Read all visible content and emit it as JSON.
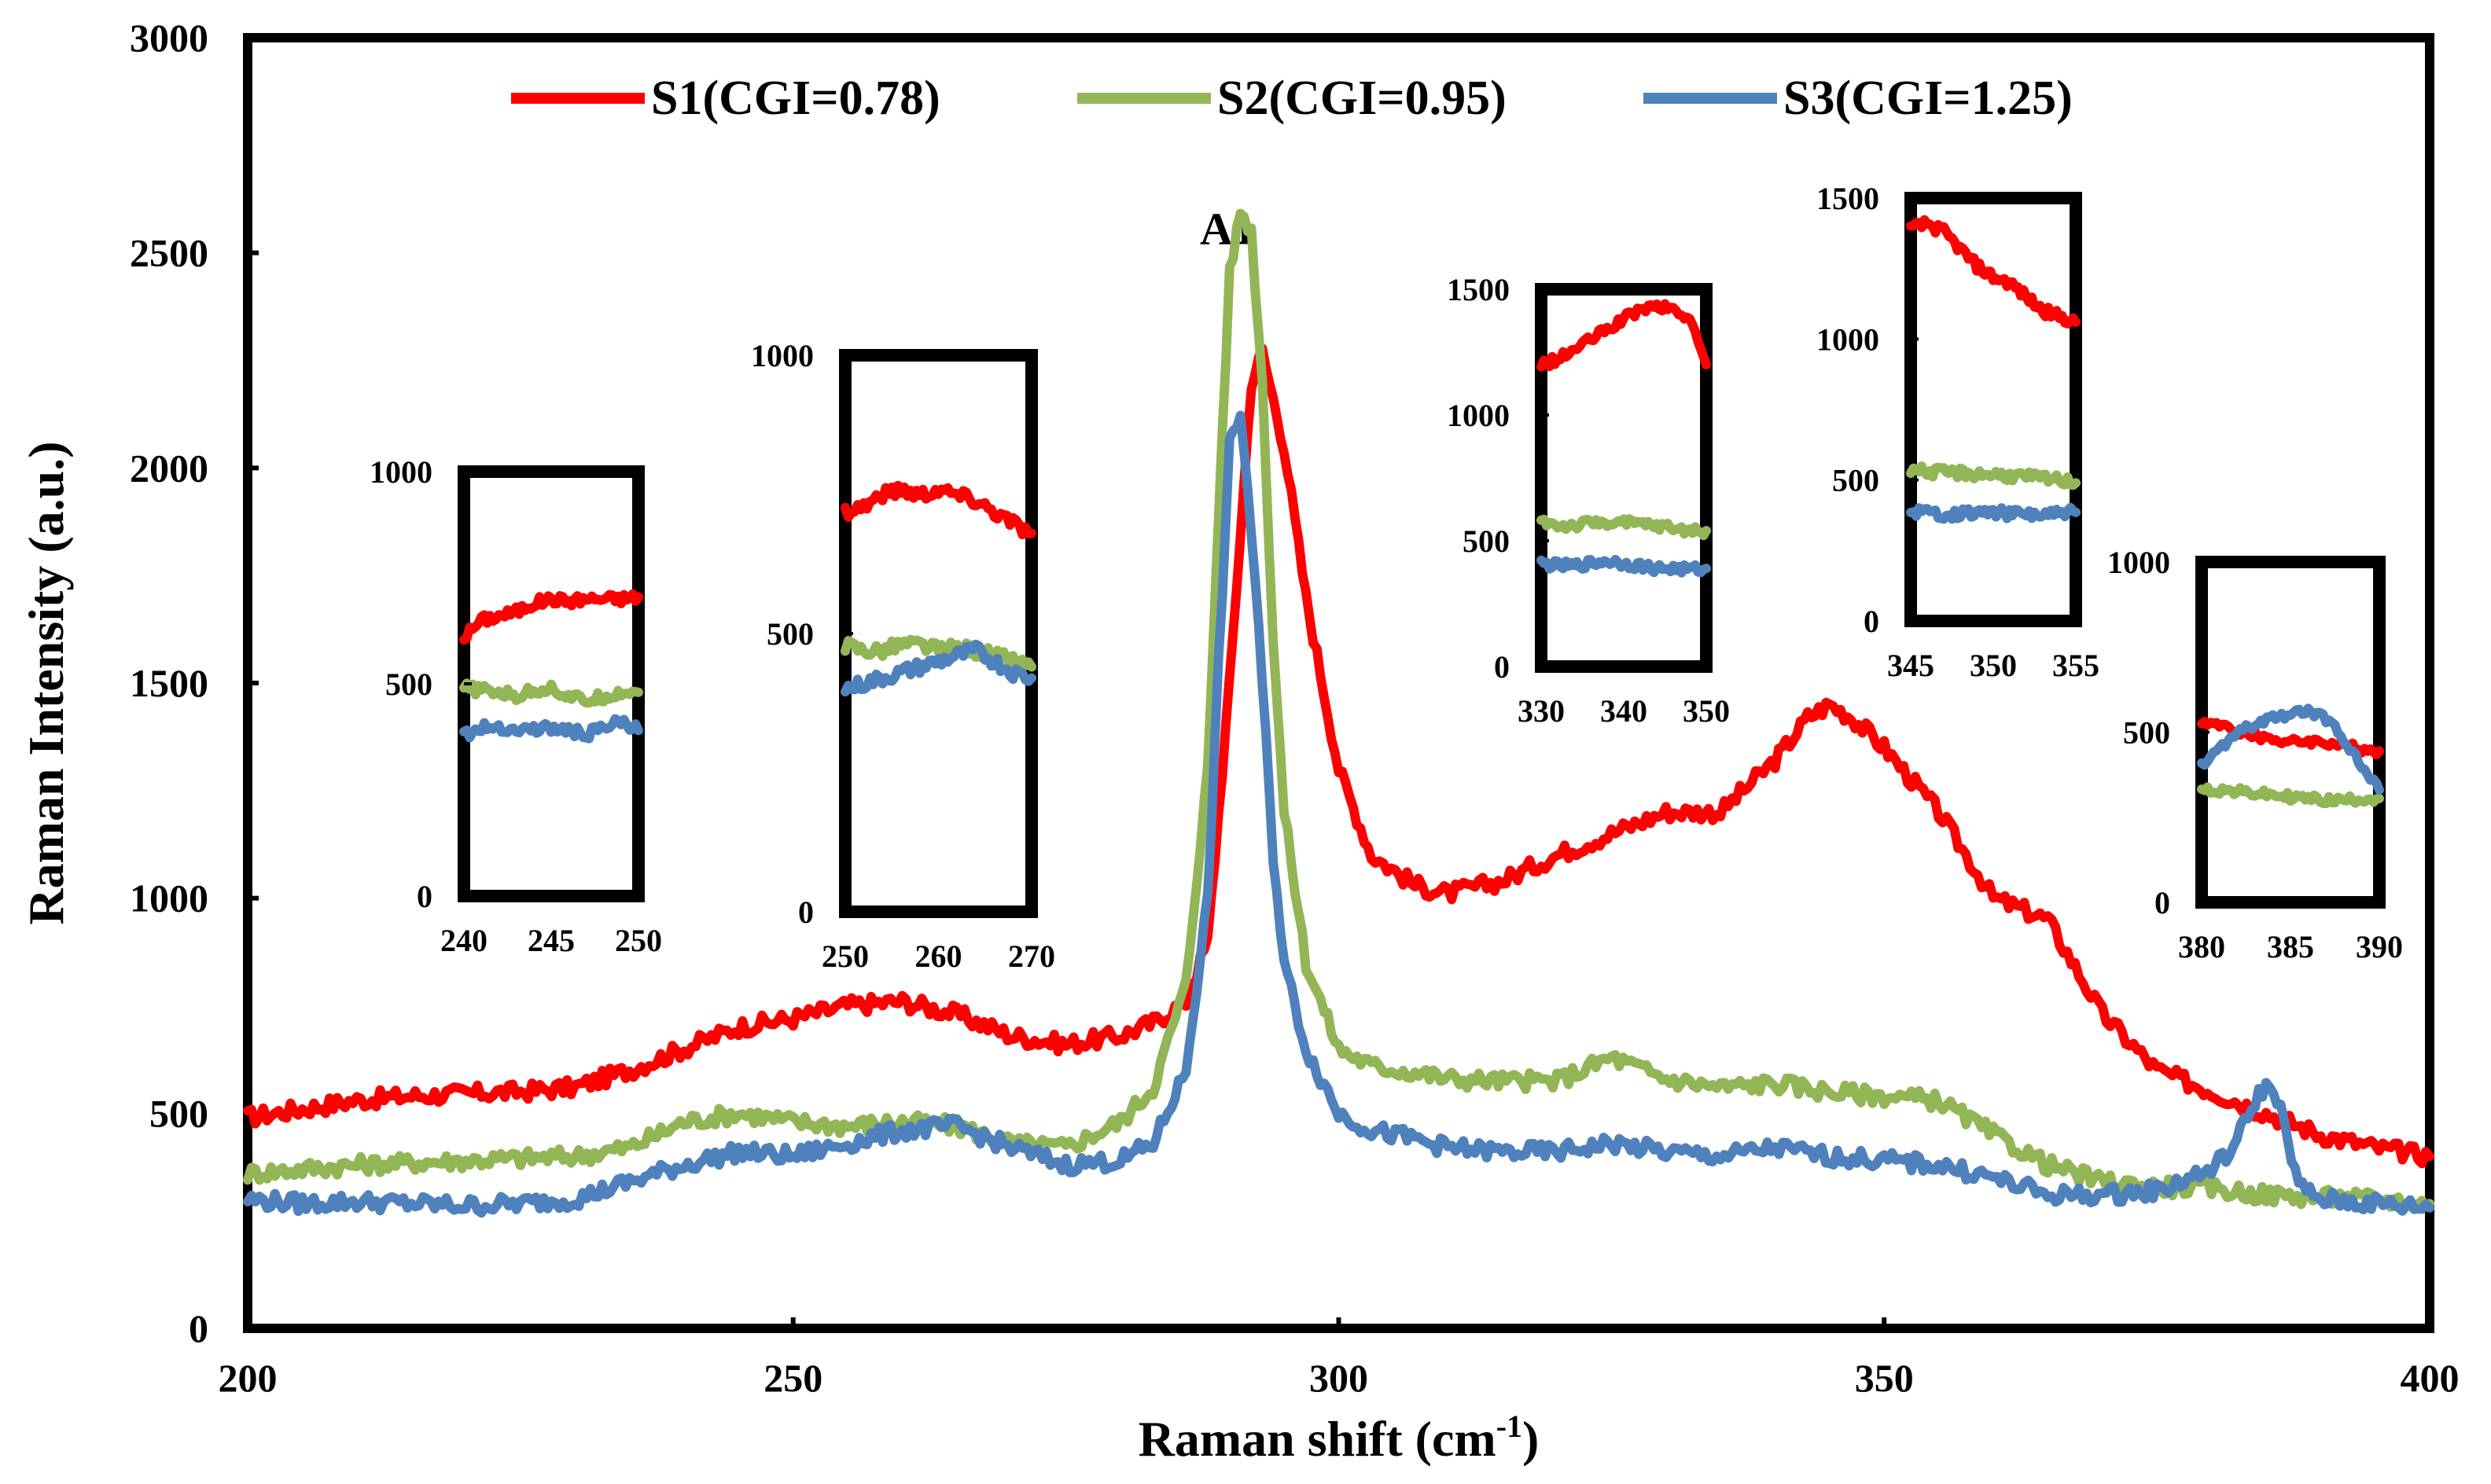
{
  "chart_data": [
    {
      "type": "line",
      "role": "main",
      "title": "",
      "xlabel": "Raman shift (cm",
      "xlabel_sup": "-1",
      "xlabel_close": ")",
      "ylabel": "Raman Intensity (a.u.)",
      "xlim": [
        200,
        400
      ],
      "ylim": [
        0,
        3000
      ],
      "xticks": [
        200,
        250,
        300,
        350,
        400
      ],
      "yticks": [
        0,
        500,
        1000,
        1500,
        2000,
        2500,
        3000
      ],
      "annotation": "A1",
      "annotation_x": 292,
      "annotation_y": 2520,
      "series": [
        {
          "name": "S1(CGI=0.78)",
          "color": "#ff0000",
          "x": [
            200,
            205,
            210,
            215,
            220,
            225,
            230,
            235,
            240,
            245,
            250,
            255,
            260,
            265,
            270,
            275,
            280,
            283,
            286,
            288,
            290,
            292,
            293,
            295,
            297,
            300,
            303,
            307,
            310,
            315,
            320,
            325,
            330,
            335,
            340,
            343,
            345,
            347,
            350,
            355,
            360,
            365,
            370,
            375,
            380,
            385,
            390,
            395,
            400
          ],
          "y": [
            490,
            510,
            530,
            540,
            545,
            550,
            560,
            600,
            650,
            700,
            720,
            750,
            760,
            730,
            680,
            660,
            680,
            710,
            760,
            900,
            1500,
            2200,
            2270,
            2050,
            1700,
            1300,
            1100,
            1030,
            1010,
            1040,
            1100,
            1150,
            1200,
            1200,
            1320,
            1420,
            1450,
            1420,
            1350,
            1200,
            1000,
            950,
            730,
            600,
            550,
            500,
            450,
            420,
            400
          ]
        },
        {
          "name": "S2(CGI=0.95)",
          "color": "#92b656",
          "x": [
            200,
            205,
            210,
            215,
            220,
            225,
            230,
            235,
            240,
            245,
            250,
            255,
            260,
            265,
            270,
            275,
            280,
            283,
            286,
            288,
            289,
            290,
            291,
            292,
            293,
            294,
            295,
            297,
            300,
            303,
            307,
            310,
            315,
            320,
            325,
            330,
            335,
            340,
            345,
            350,
            355,
            360,
            365,
            370,
            375,
            380,
            385,
            390,
            395,
            400
          ],
          "y": [
            360,
            370,
            380,
            385,
            390,
            395,
            400,
            420,
            480,
            500,
            480,
            470,
            480,
            470,
            430,
            420,
            480,
            560,
            800,
            1300,
            1900,
            2450,
            2600,
            2550,
            2200,
            1600,
            1200,
            850,
            650,
            610,
            595,
            580,
            575,
            575,
            630,
            580,
            560,
            570,
            550,
            540,
            530,
            450,
            380,
            340,
            330,
            325,
            310,
            305,
            300,
            290
          ]
        },
        {
          "name": "S3(CGI=1.25)",
          "color": "#4f81bd",
          "x": [
            200,
            205,
            210,
            215,
            220,
            225,
            230,
            235,
            240,
            245,
            250,
            255,
            260,
            265,
            270,
            275,
            280,
            283,
            286,
            288,
            289,
            290,
            291,
            292,
            293,
            294,
            295,
            297,
            300,
            303,
            307,
            310,
            315,
            320,
            325,
            330,
            335,
            340,
            345,
            350,
            355,
            360,
            365,
            370,
            375,
            380,
            382,
            384,
            385,
            386,
            388,
            390,
            395,
            400
          ],
          "y": [
            300,
            290,
            295,
            290,
            285,
            290,
            300,
            340,
            380,
            410,
            400,
            430,
            460,
            470,
            420,
            380,
            390,
            430,
            600,
            1000,
            1550,
            2050,
            2130,
            1850,
            1500,
            1100,
            850,
            650,
            500,
            460,
            440,
            420,
            410,
            410,
            430,
            410,
            400,
            420,
            400,
            390,
            380,
            350,
            310,
            310,
            320,
            370,
            420,
            530,
            565,
            540,
            330,
            300,
            290,
            280
          ]
        }
      ]
    },
    {
      "type": "line",
      "role": "inset",
      "xlim": [
        240,
        250
      ],
      "ylim": [
        0,
        1000
      ],
      "xticks": [
        240,
        245,
        250
      ],
      "yticks": [
        0,
        500,
        1000
      ],
      "series": [
        {
          "name": "S1",
          "color": "#ff0000",
          "x": [
            240,
            241,
            242,
            243,
            244,
            245,
            246,
            247,
            248,
            249,
            250
          ],
          "y": [
            610,
            650,
            660,
            670,
            690,
            700,
            695,
            700,
            700,
            700,
            705
          ]
        },
        {
          "name": "S2",
          "color": "#92b656",
          "x": [
            240,
            241,
            242,
            243,
            244,
            245,
            246,
            247,
            248,
            249,
            250
          ],
          "y": [
            490,
            485,
            480,
            470,
            485,
            490,
            470,
            460,
            470,
            480,
            480
          ]
        },
        {
          "name": "S3",
          "color": "#4f81bd",
          "x": [
            240,
            241,
            242,
            243,
            244,
            245,
            246,
            247,
            248,
            249,
            250
          ],
          "y": [
            380,
            395,
            400,
            390,
            395,
            395,
            390,
            380,
            395,
            410,
            390
          ]
        }
      ]
    },
    {
      "type": "line",
      "role": "inset",
      "xlim": [
        250,
        270
      ],
      "ylim": [
        0,
        1000
      ],
      "xticks": [
        250,
        260,
        270
      ],
      "yticks": [
        0,
        500,
        1000
      ],
      "series": [
        {
          "name": "S1",
          "color": "#ff0000",
          "x": [
            250,
            252,
            254,
            256,
            258,
            260,
            262,
            264,
            266,
            268,
            270
          ],
          "y": [
            720,
            730,
            750,
            760,
            750,
            760,
            750,
            740,
            720,
            700,
            680
          ]
        },
        {
          "name": "S2",
          "color": "#92b656",
          "x": [
            250,
            252,
            254,
            256,
            258,
            260,
            262,
            264,
            266,
            268,
            270
          ],
          "y": [
            480,
            470,
            470,
            480,
            480,
            470,
            475,
            470,
            460,
            450,
            440
          ]
        },
        {
          "name": "S3",
          "color": "#4f81bd",
          "x": [
            250,
            252,
            254,
            256,
            258,
            260,
            262,
            264,
            266,
            268,
            270
          ],
          "y": [
            400,
            410,
            420,
            430,
            440,
            450,
            460,
            470,
            450,
            430,
            420
          ]
        }
      ]
    },
    {
      "type": "line",
      "role": "inset",
      "xlim": [
        330,
        350
      ],
      "ylim": [
        0,
        1500
      ],
      "xticks": [
        330,
        340,
        350
      ],
      "yticks": [
        0,
        500,
        1000,
        1500
      ],
      "series": [
        {
          "name": "S1",
          "color": "#ff0000",
          "x": [
            330,
            332,
            334,
            336,
            338,
            340,
            342,
            344,
            346,
            348,
            350
          ],
          "y": [
            1200,
            1220,
            1260,
            1300,
            1340,
            1380,
            1420,
            1430,
            1420,
            1380,
            1200
          ]
        },
        {
          "name": "S2",
          "color": "#92b656",
          "x": [
            330,
            332,
            334,
            336,
            338,
            340,
            342,
            344,
            346,
            348,
            350
          ],
          "y": [
            580,
            560,
            560,
            570,
            575,
            570,
            565,
            560,
            550,
            540,
            540
          ]
        },
        {
          "name": "S3",
          "color": "#4f81bd",
          "x": [
            330,
            332,
            334,
            336,
            338,
            340,
            342,
            344,
            346,
            348,
            350
          ],
          "y": [
            410,
            400,
            400,
            410,
            420,
            410,
            400,
            390,
            390,
            385,
            390
          ]
        }
      ]
    },
    {
      "type": "line",
      "role": "inset",
      "xlim": [
        345,
        355
      ],
      "ylim": [
        0,
        1500
      ],
      "xticks": [
        345,
        350,
        355
      ],
      "yticks": [
        0,
        500,
        1000,
        1500
      ],
      "series": [
        {
          "name": "S1",
          "color": "#ff0000",
          "x": [
            345,
            346,
            347,
            348,
            349,
            350,
            351,
            352,
            353,
            354,
            355
          ],
          "y": [
            1390,
            1410,
            1380,
            1320,
            1260,
            1220,
            1200,
            1150,
            1100,
            1080,
            1060
          ]
        },
        {
          "name": "S2",
          "color": "#92b656",
          "x": [
            345,
            346,
            347,
            348,
            349,
            350,
            351,
            352,
            353,
            354,
            355
          ],
          "y": [
            540,
            530,
            525,
            525,
            520,
            520,
            515,
            510,
            505,
            500,
            490
          ]
        },
        {
          "name": "S3",
          "color": "#4f81bd",
          "x": [
            345,
            346,
            347,
            348,
            349,
            350,
            351,
            352,
            353,
            354,
            355
          ],
          "y": [
            390,
            385,
            380,
            380,
            385,
            385,
            380,
            380,
            375,
            380,
            385
          ]
        }
      ]
    },
    {
      "type": "line",
      "role": "inset",
      "xlim": [
        380,
        390
      ],
      "ylim": [
        0,
        1000
      ],
      "xticks": [
        380,
        385,
        390
      ],
      "yticks": [
        0,
        500,
        1000
      ],
      "series": [
        {
          "name": "S1",
          "color": "#ff0000",
          "x": [
            380,
            381,
            382,
            383,
            384,
            385,
            386,
            387,
            388,
            389,
            390
          ],
          "y": [
            530,
            520,
            500,
            490,
            480,
            470,
            475,
            470,
            460,
            450,
            445
          ]
        },
        {
          "name": "S2",
          "color": "#92b656",
          "x": [
            380,
            381,
            382,
            383,
            384,
            385,
            386,
            387,
            388,
            389,
            390
          ],
          "y": [
            330,
            330,
            325,
            320,
            315,
            310,
            305,
            300,
            300,
            305,
            305
          ]
        },
        {
          "name": "S3",
          "color": "#4f81bd",
          "x": [
            380,
            381,
            382,
            383,
            384,
            385,
            386,
            387,
            388,
            389,
            390
          ],
          "y": [
            400,
            450,
            500,
            520,
            540,
            555,
            560,
            540,
            480,
            400,
            330
          ]
        }
      ]
    }
  ]
}
